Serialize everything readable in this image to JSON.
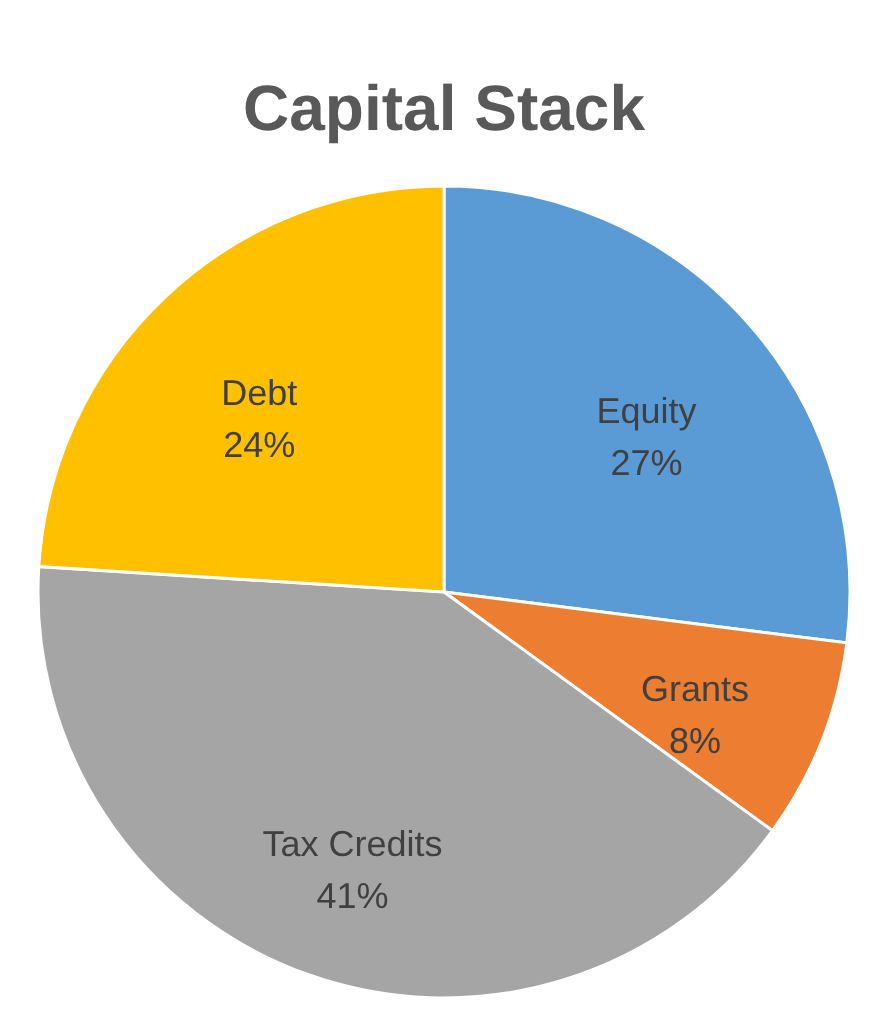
{
  "chart_data": {
    "type": "pie",
    "title": "Capital Stack",
    "categories": [
      "Equity",
      "Grants",
      "Tax Credits",
      "Debt"
    ],
    "values": [
      27,
      8,
      41,
      24
    ],
    "value_labels": [
      "27%",
      "8%",
      "41%",
      "24%"
    ],
    "colors": [
      "#5b9bd5",
      "#ed7d31",
      "#a5a5a5",
      "#ffc000"
    ]
  }
}
